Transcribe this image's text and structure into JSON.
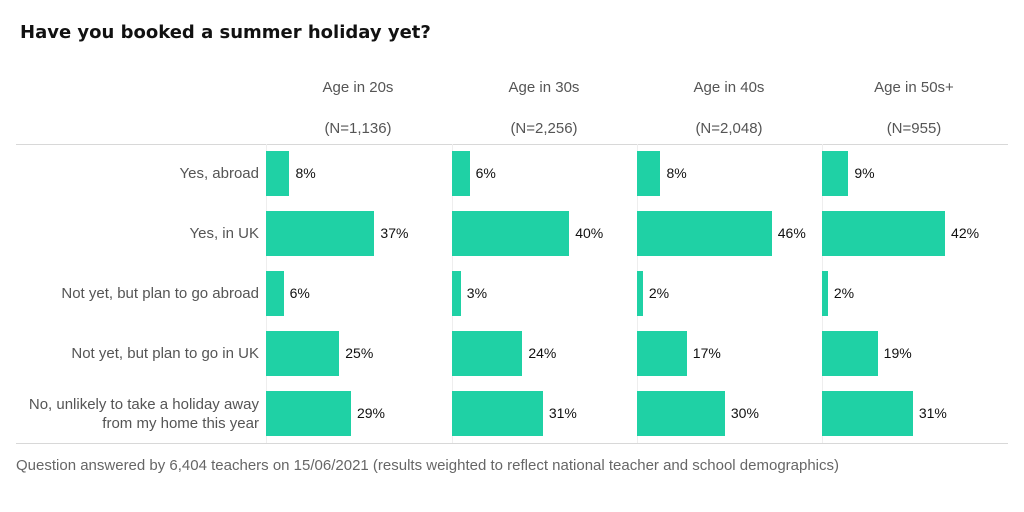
{
  "chart_data": {
    "type": "bar",
    "title": "Have you booked a summer holiday yet?",
    "categories": [
      "Yes, abroad",
      "Yes, in UK",
      "Not yet, but plan to go abroad",
      "Not yet, but plan to go in UK",
      "No, unlikely to take a holiday away from my home this year"
    ],
    "series": [
      {
        "name": "Age in 20s",
        "n": "(N=1,136)",
        "values": [
          8,
          37,
          6,
          25,
          29
        ]
      },
      {
        "name": "Age in 30s",
        "n": "(N=2,256)",
        "values": [
          6,
          40,
          3,
          24,
          31
        ]
      },
      {
        "name": "Age in 40s",
        "n": "(N=2,048)",
        "values": [
          8,
          46,
          2,
          17,
          30
        ]
      },
      {
        "name": "Age in 50s+",
        "n": "(N=955)",
        "values": [
          9,
          42,
          2,
          19,
          31
        ]
      }
    ],
    "unit": "%",
    "xlim": [
      0,
      100
    ],
    "bar_color": "#1fd1a5",
    "footnote": "Question answered by 6,404 teachers on 15/06/2021 (results weighted to reflect national teacher and school demographics)"
  }
}
